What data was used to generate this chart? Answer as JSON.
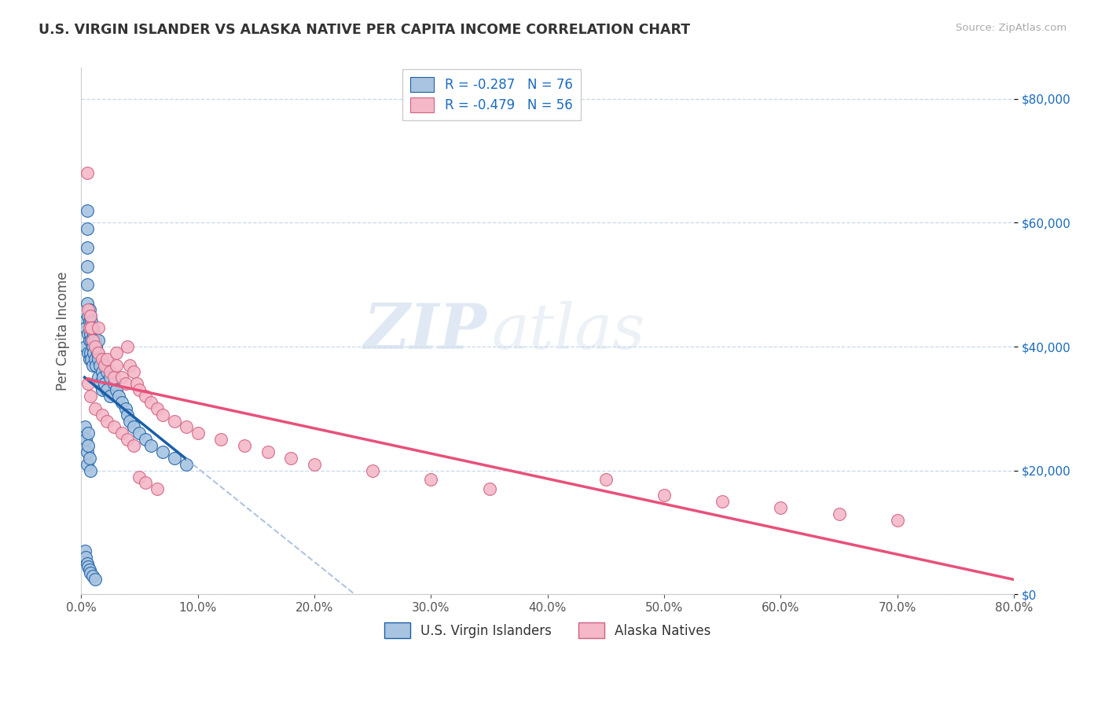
{
  "title": "U.S. VIRGIN ISLANDER VS ALASKA NATIVE PER CAPITA INCOME CORRELATION CHART",
  "source": "Source: ZipAtlas.com",
  "ylabel": "Per Capita Income",
  "xlabel_ticks": [
    "0.0%",
    "10.0%",
    "20.0%",
    "30.0%",
    "40.0%",
    "50.0%",
    "60.0%",
    "70.0%",
    "80.0%"
  ],
  "ytick_labels": [
    "$0",
    "$20,000",
    "$40,000",
    "$60,000",
    "$80,000"
  ],
  "ytick_values": [
    0,
    20000,
    40000,
    60000,
    80000
  ],
  "xlim": [
    0.0,
    0.8
  ],
  "ylim": [
    0,
    85000
  ],
  "legend_label1": "U.S. Virgin Islanders",
  "legend_label2": "Alaska Natives",
  "R1": "-0.287",
  "N1": "76",
  "R2": "-0.479",
  "N2": "56",
  "color_blue": "#a8c4e0",
  "color_pink": "#f4b8c8",
  "line_blue": "#1a5fa8",
  "line_pink": "#e8507a",
  "line_dashed_color": "#b0c4de",
  "background": "#ffffff",
  "grid_color": "#c8d8e8",
  "watermark_zip": "ZIP",
  "watermark_atlas": "atlas",
  "blue_x": [
    0.003,
    0.004,
    0.004,
    0.005,
    0.005,
    0.005,
    0.005,
    0.005,
    0.005,
    0.006,
    0.006,
    0.006,
    0.007,
    0.007,
    0.007,
    0.007,
    0.008,
    0.008,
    0.008,
    0.009,
    0.009,
    0.009,
    0.01,
    0.01,
    0.01,
    0.011,
    0.011,
    0.012,
    0.012,
    0.013,
    0.013,
    0.014,
    0.015,
    0.015,
    0.015,
    0.016,
    0.016,
    0.018,
    0.018,
    0.019,
    0.02,
    0.02,
    0.022,
    0.022,
    0.025,
    0.025,
    0.028,
    0.03,
    0.032,
    0.035,
    0.038,
    0.04,
    0.042,
    0.045,
    0.05,
    0.055,
    0.06,
    0.07,
    0.08,
    0.09,
    0.003,
    0.004,
    0.005,
    0.005,
    0.006,
    0.006,
    0.007,
    0.008,
    0.003,
    0.004,
    0.005,
    0.006,
    0.007,
    0.008,
    0.01,
    0.012
  ],
  "blue_y": [
    44000,
    43000,
    40000,
    62000,
    59000,
    56000,
    53000,
    50000,
    47000,
    45000,
    42000,
    39000,
    46000,
    44000,
    41000,
    38000,
    45000,
    42000,
    39000,
    44000,
    41000,
    38000,
    43000,
    40000,
    37000,
    42000,
    39000,
    41000,
    38000,
    40000,
    37000,
    39000,
    41000,
    38000,
    35000,
    37000,
    34000,
    36000,
    33000,
    35000,
    37000,
    34000,
    36000,
    33000,
    35000,
    32000,
    34000,
    33000,
    32000,
    31000,
    30000,
    29000,
    28000,
    27000,
    26000,
    25000,
    24000,
    23000,
    22000,
    21000,
    27000,
    25000,
    23000,
    21000,
    26000,
    24000,
    22000,
    20000,
    7000,
    6000,
    5000,
    4500,
    4000,
    3500,
    3000,
    2500
  ],
  "pink_x": [
    0.005,
    0.006,
    0.007,
    0.008,
    0.009,
    0.01,
    0.012,
    0.015,
    0.015,
    0.018,
    0.02,
    0.022,
    0.025,
    0.028,
    0.03,
    0.03,
    0.035,
    0.038,
    0.04,
    0.042,
    0.045,
    0.048,
    0.05,
    0.055,
    0.06,
    0.065,
    0.07,
    0.08,
    0.09,
    0.1,
    0.12,
    0.14,
    0.16,
    0.18,
    0.2,
    0.25,
    0.3,
    0.35,
    0.45,
    0.5,
    0.55,
    0.6,
    0.65,
    0.7,
    0.006,
    0.008,
    0.012,
    0.018,
    0.022,
    0.028,
    0.035,
    0.04,
    0.045,
    0.05,
    0.055,
    0.065
  ],
  "pink_y": [
    68000,
    46000,
    43000,
    45000,
    43000,
    41000,
    40000,
    43000,
    39000,
    38000,
    37000,
    38000,
    36000,
    35000,
    39000,
    37000,
    35000,
    34000,
    40000,
    37000,
    36000,
    34000,
    33000,
    32000,
    31000,
    30000,
    29000,
    28000,
    27000,
    26000,
    25000,
    24000,
    23000,
    22000,
    21000,
    20000,
    18500,
    17000,
    18500,
    16000,
    15000,
    14000,
    13000,
    12000,
    34000,
    32000,
    30000,
    29000,
    28000,
    27000,
    26000,
    25000,
    24000,
    19000,
    18000,
    17000
  ]
}
